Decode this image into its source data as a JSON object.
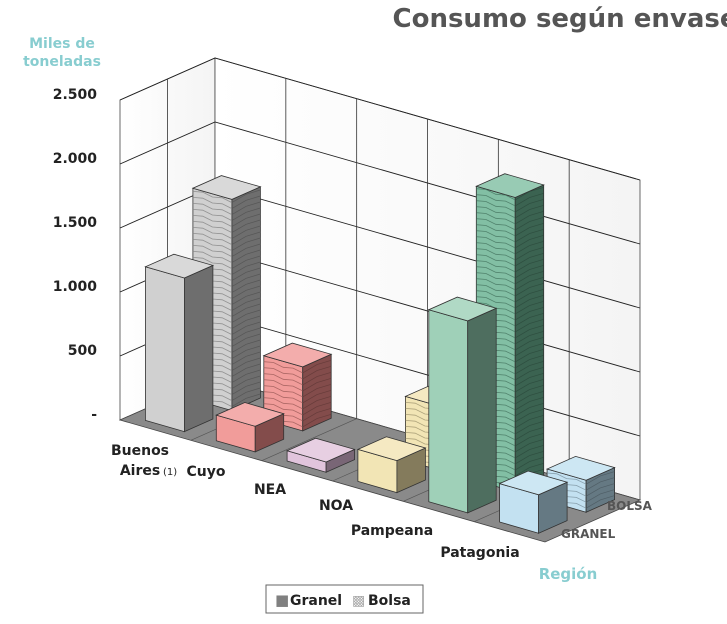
{
  "chart_data": {
    "type": "bar",
    "title": "Consumo según envase",
    "ylabel_line1": "Miles de",
    "ylabel_line2": "toneladas",
    "xlabel": "Región",
    "categories": [
      "Buenos Aires",
      "Cuyo",
      "NEA",
      "NOA",
      "Pampeana",
      "Patagonia"
    ],
    "category_note": "(1)",
    "depth_categories": [
      "GRANEL",
      "BOLSA"
    ],
    "yticks": [
      "-",
      "500",
      "1.000",
      "1.500",
      "2.000",
      "2.500"
    ],
    "ylim": [
      0,
      2500
    ],
    "grid": true,
    "legend_position": "bottom",
    "legend_square": "■",
    "legend_hatch": "▩",
    "series": [
      {
        "name": "Granel",
        "values": [
          1200,
          200,
          80,
          250,
          1500,
          300
        ]
      },
      {
        "name": "Bolsa",
        "values": [
          1650,
          500,
          0,
          500,
          2300,
          250
        ]
      }
    ],
    "category_colors": [
      "#c8c8c8",
      "#ee8a88",
      "#dcbad6",
      "#f0e0a8",
      "#8ec8ac",
      "#b8dcee"
    ],
    "pampeana_bolsa_color": "#6cb494",
    "title_color": "#555555",
    "axis_label_color": "#88cdd0"
  }
}
